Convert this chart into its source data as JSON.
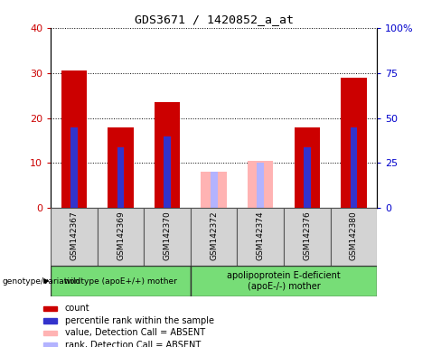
{
  "title": "GDS3671 / 1420852_a_at",
  "samples": [
    "GSM142367",
    "GSM142369",
    "GSM142370",
    "GSM142372",
    "GSM142374",
    "GSM142376",
    "GSM142380"
  ],
  "count_values": [
    30.5,
    18.0,
    23.5,
    null,
    null,
    18.0,
    29.0
  ],
  "percentile_rank": [
    18.0,
    13.5,
    16.0,
    null,
    null,
    13.5,
    18.0
  ],
  "absent_value": [
    null,
    null,
    null,
    8.0,
    10.5,
    null,
    null
  ],
  "absent_rank": [
    null,
    null,
    null,
    8.0,
    10.0,
    null,
    null
  ],
  "count_color": "#cc0000",
  "percentile_color": "#3333cc",
  "absent_value_color": "#ffb3b3",
  "absent_rank_color": "#b3b3ff",
  "ylim_left": [
    0,
    40
  ],
  "ylim_right": [
    0,
    100
  ],
  "yticks_left": [
    0,
    10,
    20,
    30,
    40
  ],
  "ytick_labels_left": [
    "0",
    "10",
    "20",
    "30",
    "40"
  ],
  "yticks_right": [
    0,
    25,
    50,
    75,
    100
  ],
  "ytick_labels_right": [
    "0",
    "25",
    "50",
    "75",
    "100%"
  ],
  "legend_items": [
    {
      "color": "#cc0000",
      "label": "count"
    },
    {
      "color": "#3333cc",
      "label": "percentile rank within the sample"
    },
    {
      "color": "#ffb3b3",
      "label": "value, Detection Call = ABSENT"
    },
    {
      "color": "#b3b3ff",
      "label": "rank, Detection Call = ABSENT"
    }
  ],
  "plot_bg_color": "#ffffff",
  "bar_width": 0.55,
  "narrow_bar_width": 0.15
}
